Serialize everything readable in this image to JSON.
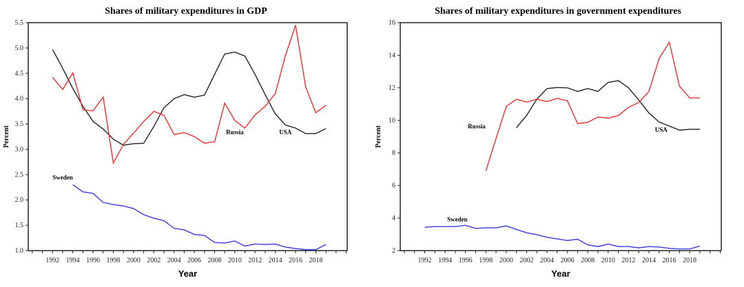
{
  "chart_data": [
    {
      "type": "line",
      "title": "Shares of military expenditures in GDP",
      "xlabel": "Year",
      "ylabel": "Percent",
      "xlim": [
        1989.6,
        2021.1
      ],
      "ylim": [
        1.0,
        5.5
      ],
      "yticks": [
        1.0,
        1.5,
        2.0,
        2.5,
        3.0,
        3.5,
        4.0,
        4.5,
        5.0,
        5.5
      ],
      "ytick_labels": [
        "1.0",
        "1.5",
        "2.0",
        "2.5",
        "3.0",
        "3.5",
        "4.0",
        "4.5",
        "5.0",
        "5.5"
      ],
      "xticks": [
        1992,
        1994,
        1996,
        1998,
        2000,
        2002,
        2004,
        2006,
        2008,
        2010,
        2012,
        2014,
        2016,
        2018
      ],
      "xtick_labels": [
        "1992",
        "1994",
        "1996",
        "1998",
        "2000",
        "2002",
        "2004",
        "2006",
        "2008",
        "2010",
        "2012",
        "2014",
        "2016",
        "2018"
      ],
      "grid": false,
      "series": [
        {
          "name": "USA",
          "color": "#222222",
          "label_at": [
            2015,
            3.3
          ],
          "start": 1992,
          "values": [
            4.97,
            4.6,
            4.2,
            3.85,
            3.55,
            3.4,
            3.2,
            3.08,
            3.11,
            3.12,
            3.45,
            3.82,
            4.0,
            4.08,
            4.03,
            4.07,
            4.48,
            4.88,
            4.92,
            4.84,
            4.48,
            4.08,
            3.7,
            3.48,
            3.42,
            3.31,
            3.31,
            3.41
          ]
        },
        {
          "name": "Russia",
          "color": "#e8302e",
          "label_at": [
            2010,
            3.3
          ],
          "start": 1992,
          "values": [
            4.42,
            4.18,
            4.51,
            3.78,
            3.76,
            4.03,
            2.73,
            3.1,
            3.32,
            3.55,
            3.75,
            3.67,
            3.29,
            3.33,
            3.25,
            3.12,
            3.15,
            3.91,
            3.57,
            3.42,
            3.68,
            3.85,
            4.1,
            4.85,
            5.45,
            4.23,
            3.72,
            3.87
          ]
        },
        {
          "name": "Sweden",
          "color": "#3a3ae0",
          "label_at": [
            1993,
            2.4
          ],
          "start": 1994,
          "values": [
            2.3,
            2.16,
            2.13,
            1.95,
            1.91,
            1.88,
            1.83,
            1.71,
            1.64,
            1.59,
            1.44,
            1.41,
            1.32,
            1.3,
            1.16,
            1.15,
            1.19,
            1.09,
            1.13,
            1.12,
            1.13,
            1.07,
            1.04,
            1.02,
            1.02,
            1.12
          ]
        }
      ]
    },
    {
      "type": "line",
      "title": "Shares of military expenditures in government expenditures",
      "xlabel": "Year",
      "ylabel": "Percent",
      "xlim": [
        1989.6,
        2021.1
      ],
      "ylim": [
        2,
        16
      ],
      "yticks": [
        2,
        4,
        6,
        8,
        10,
        12,
        14,
        16
      ],
      "ytick_labels": [
        "2",
        "4",
        "6",
        "8",
        "10",
        "12",
        "14",
        "16"
      ],
      "xticks": [
        1992,
        1994,
        1996,
        1998,
        2000,
        2002,
        2004,
        2006,
        2008,
        2010,
        2012,
        2014,
        2016,
        2018
      ],
      "xtick_labels": [
        "1992",
        "1994",
        "1996",
        "1998",
        "2000",
        "2002",
        "2004",
        "2006",
        "2008",
        "2010",
        "2012",
        "2014",
        "2016",
        "2018"
      ],
      "grid": false,
      "series": [
        {
          "name": "USA",
          "color": "#222222",
          "label_at": [
            2015.2,
            9.3
          ],
          "start": 2001,
          "values": [
            9.55,
            10.3,
            11.3,
            11.95,
            12.02,
            12.0,
            11.78,
            11.95,
            11.78,
            12.33,
            12.44,
            12.0,
            11.25,
            10.45,
            9.9,
            9.65,
            9.4,
            9.45,
            9.45
          ]
        },
        {
          "name": "Russia",
          "color": "#e8302e",
          "label_at": [
            1997.1,
            9.5
          ],
          "start": 1998,
          "values": [
            6.9,
            8.9,
            10.85,
            11.3,
            11.12,
            11.3,
            11.15,
            11.35,
            11.2,
            9.8,
            9.88,
            10.2,
            10.13,
            10.3,
            10.8,
            11.1,
            11.78,
            13.8,
            14.8,
            12.1,
            11.38,
            11.38
          ]
        },
        {
          "name": "Sweden",
          "color": "#3a3ae0",
          "label_at": [
            1995.2,
            3.8
          ],
          "start": 1992,
          "values": [
            3.43,
            3.48,
            3.48,
            3.48,
            3.55,
            3.36,
            3.4,
            3.4,
            3.52,
            3.3,
            3.1,
            2.98,
            2.82,
            2.72,
            2.62,
            2.7,
            2.35,
            2.25,
            2.4,
            2.25,
            2.25,
            2.17,
            2.25,
            2.22,
            2.14,
            2.1,
            2.1,
            2.28
          ]
        }
      ]
    }
  ]
}
